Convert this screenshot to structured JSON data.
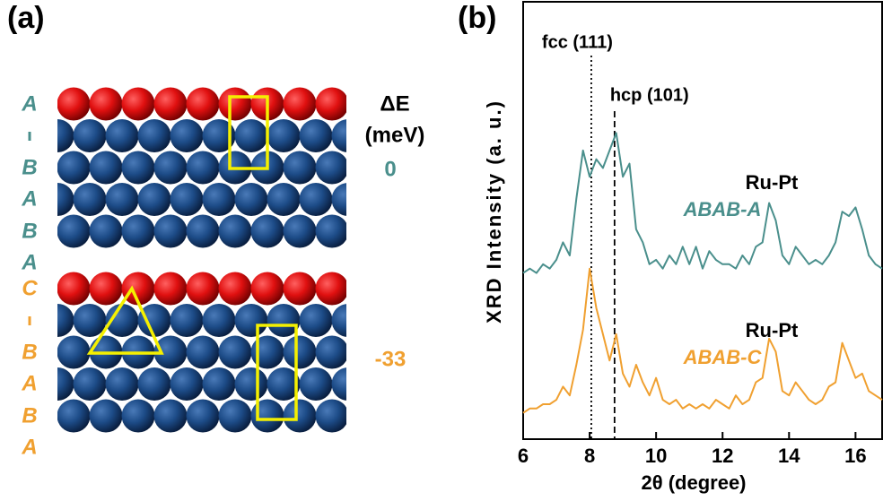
{
  "panel_a": {
    "label": "(a)",
    "energy_header": [
      "ΔE",
      "(meV)"
    ],
    "stackings": [
      {
        "layers": [
          "A",
          "B",
          "A",
          "B",
          "A"
        ],
        "energy": "0",
        "color": "#4a8f8c"
      },
      {
        "layers": [
          "C",
          "B",
          "A",
          "B",
          "A"
        ],
        "energy": "-33",
        "color": "#f0a030"
      }
    ]
  },
  "chart_data": {
    "type": "line",
    "panel_label": "(b)",
    "x_label": "2θ (degree)",
    "y_label": "XRD Intensity (a. u.)",
    "xlim": [
      6,
      16.8
    ],
    "xticks": [
      6,
      8,
      10,
      12,
      14,
      16
    ],
    "ylim": [
      0,
      100
    ],
    "x": [
      6.0,
      6.2,
      6.4,
      6.6,
      6.8,
      7.0,
      7.2,
      7.4,
      7.6,
      7.8,
      8.0,
      8.2,
      8.4,
      8.6,
      8.8,
      9.0,
      9.2,
      9.4,
      9.6,
      9.8,
      10.0,
      10.2,
      10.4,
      10.6,
      10.8,
      11.0,
      11.2,
      11.4,
      11.6,
      11.8,
      12.0,
      12.2,
      12.4,
      12.6,
      12.8,
      13.0,
      13.2,
      13.4,
      13.6,
      13.8,
      14.0,
      14.2,
      14.4,
      14.6,
      14.8,
      15.0,
      15.2,
      15.4,
      15.6,
      15.8,
      16.0,
      16.2,
      16.4,
      16.6,
      16.8
    ],
    "series": [
      {
        "name": "ABAB-A",
        "label": "Ru-Pt",
        "color": "#4a8f8c",
        "values": [
          38,
          39,
          38,
          40,
          39,
          41,
          45,
          42,
          55,
          66,
          60,
          64,
          62,
          66,
          70,
          60,
          63,
          48,
          45,
          40,
          41,
          39,
          42,
          40,
          44,
          40,
          44,
          39,
          43,
          41,
          40,
          40,
          39,
          42,
          40,
          44,
          45,
          54,
          50,
          42,
          40,
          44,
          42,
          40,
          41,
          40,
          42,
          45,
          52,
          51,
          53,
          48,
          42,
          40,
          39
        ]
      },
      {
        "name": "ABAB-C",
        "label": "Ru-Pt",
        "color": "#f0a030",
        "values": [
          6,
          7,
          7,
          8,
          8,
          9,
          12,
          10,
          17,
          25,
          39,
          30,
          24,
          18,
          24,
          15,
          12,
          17,
          13,
          10,
          14,
          9,
          8,
          9,
          7,
          8,
          7,
          8,
          7,
          9,
          8,
          7,
          10,
          8,
          9,
          13,
          14,
          23,
          20,
          11,
          10,
          13,
          11,
          9,
          8,
          9,
          12,
          13,
          22,
          18,
          14,
          15,
          11,
          10,
          9
        ]
      }
    ],
    "annotations": [
      {
        "text": "fcc (111)",
        "x": 8.05,
        "style": "dotted"
      },
      {
        "text": "hcp (101)",
        "x": 8.75,
        "style": "dashed"
      }
    ]
  }
}
